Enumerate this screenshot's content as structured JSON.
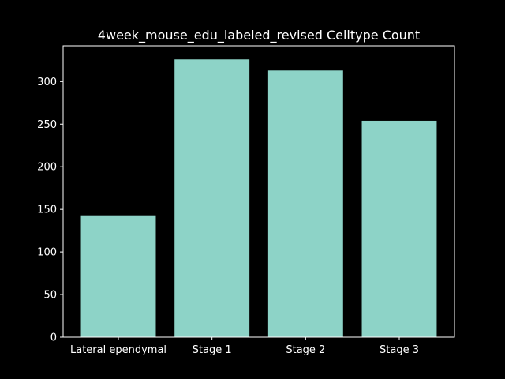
{
  "colors": {
    "background": "#000000",
    "bar": "#8dd3c7",
    "axis": "#ffffff",
    "text": "#ffffff"
  },
  "chart_data": {
    "type": "bar",
    "title": "4week_mouse_edu_labeled_revised Celltype Count",
    "xlabel": "",
    "ylabel": "",
    "categories": [
      "Lateral ependymal",
      "Stage 1",
      "Stage 2",
      "Stage 3"
    ],
    "values": [
      143,
      326,
      313,
      254
    ],
    "ylim": [
      0,
      342
    ],
    "yticks": [
      0,
      50,
      100,
      150,
      200,
      250,
      300
    ],
    "grid": false,
    "legend": "none"
  }
}
